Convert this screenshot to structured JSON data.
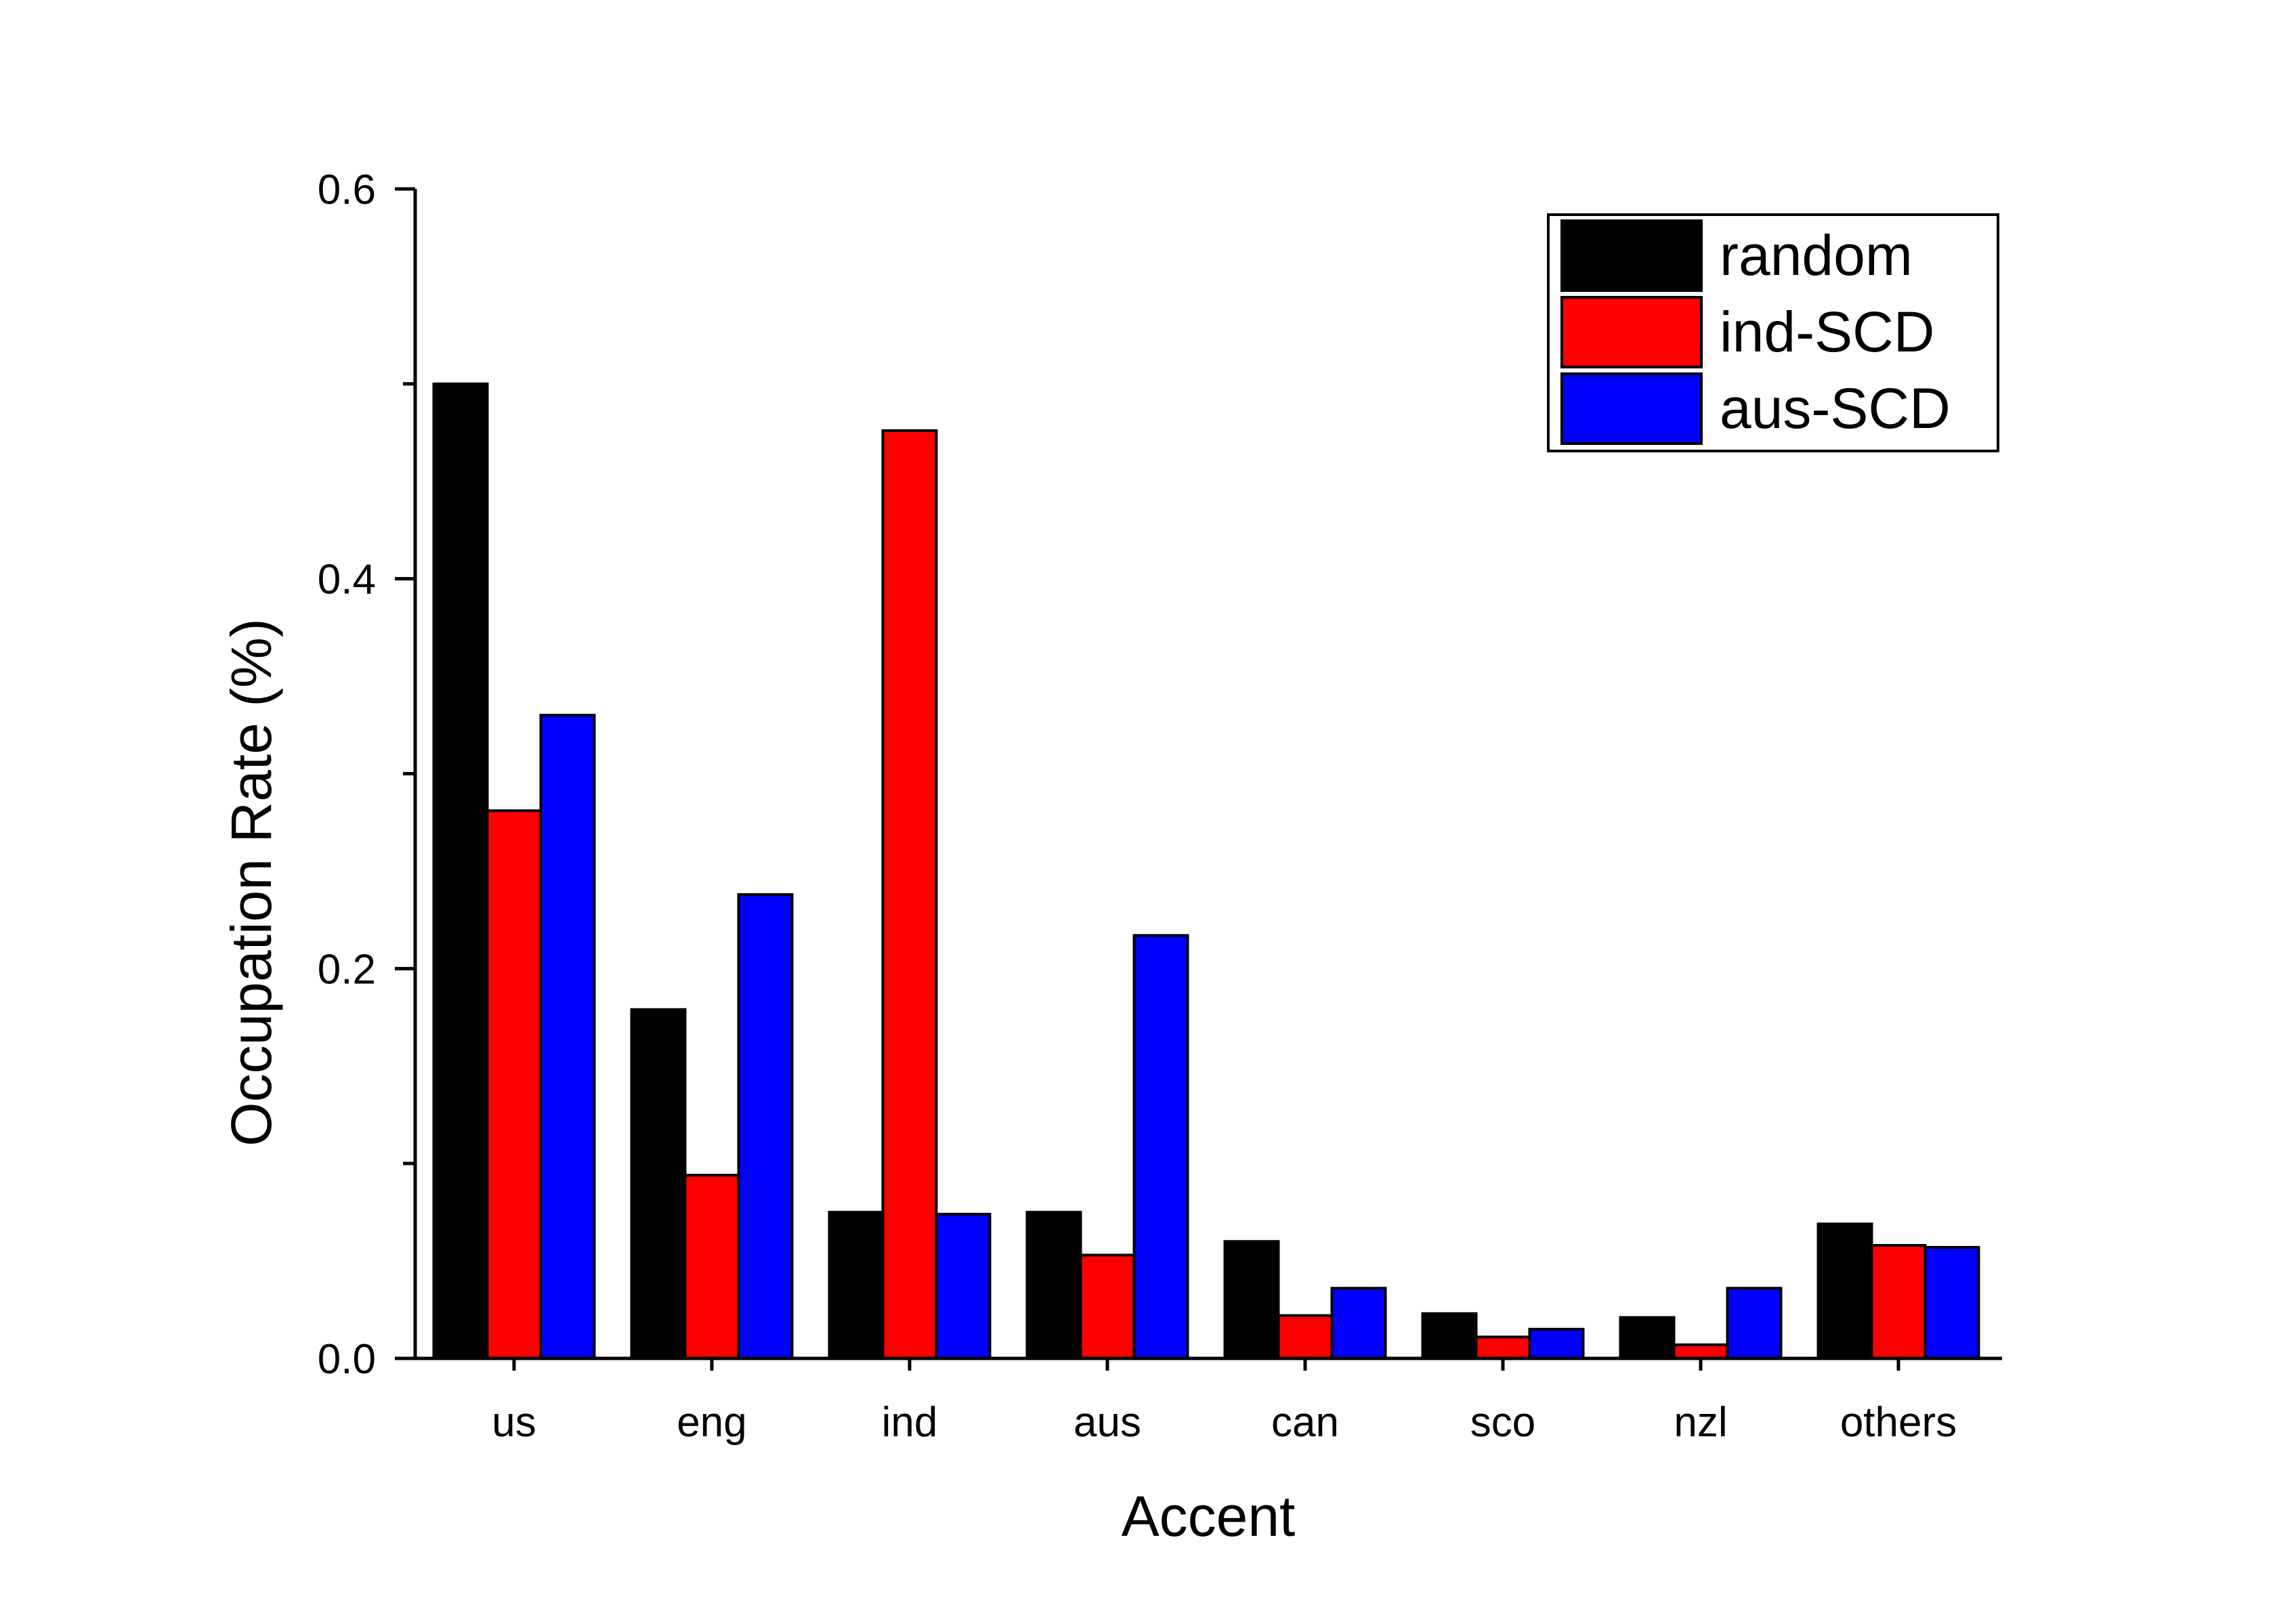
{
  "chart_data": {
    "type": "bar",
    "title": "",
    "xlabel": "Accent",
    "ylabel": "Occupation Rate (%)",
    "ylim": [
      0,
      0.6
    ],
    "yticks": [
      "0.0",
      "0.2",
      "0.4",
      "0.6"
    ],
    "categories": [
      "us",
      "eng",
      "ind",
      "aus",
      "can",
      "sco",
      "nzl",
      "others"
    ],
    "series": [
      {
        "name": "random",
        "color": "#000000",
        "values": [
          0.5,
          0.179,
          0.075,
          0.075,
          0.06,
          0.023,
          0.021,
          0.069
        ]
      },
      {
        "name": "ind-SCD",
        "color": "#ff0000",
        "values": [
          0.281,
          0.094,
          0.476,
          0.053,
          0.022,
          0.011,
          0.007,
          0.058
        ]
      },
      {
        "name": "aus-SCD",
        "color": "#0000ff",
        "values": [
          0.33,
          0.238,
          0.074,
          0.217,
          0.036,
          0.015,
          0.036,
          0.057
        ]
      }
    ],
    "legend_position": "top-right",
    "grid": false
  }
}
